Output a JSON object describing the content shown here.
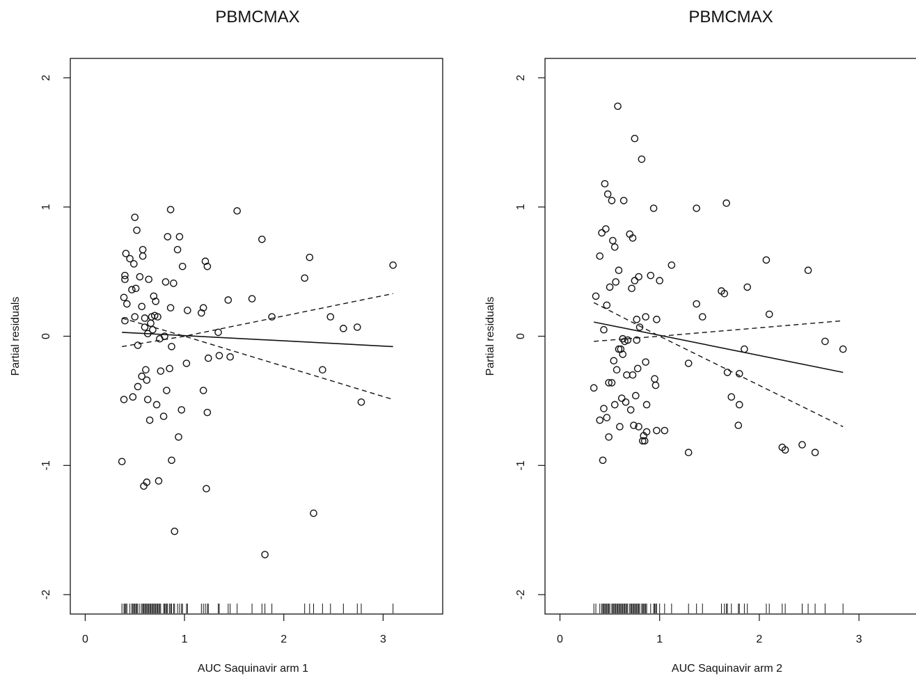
{
  "chart_data": [
    {
      "type": "scatter",
      "title": "PBMCMAX",
      "xlabel": "AUC Saquinavir arm 1",
      "ylabel": "Partial residuals",
      "xlim": [
        -0.15,
        3.6
      ],
      "ylim": [
        -2.15,
        2.15
      ],
      "x_ticks": [
        "0",
        "1",
        "2",
        "3"
      ],
      "y_ticks": [
        "-2",
        "-1",
        "0",
        "1",
        "2"
      ],
      "grid": false,
      "legend": "none",
      "points": [
        [
          0.37,
          -0.97
        ],
        [
          0.39,
          -0.49
        ],
        [
          0.4,
          0.47
        ],
        [
          0.4,
          0.44
        ],
        [
          0.39,
          0.3
        ],
        [
          0.4,
          0.12
        ],
        [
          0.41,
          0.64
        ],
        [
          0.42,
          0.25
        ],
        [
          0.45,
          0.6
        ],
        [
          0.47,
          0.36
        ],
        [
          0.48,
          -0.47
        ],
        [
          0.49,
          0.56
        ],
        [
          0.5,
          0.92
        ],
        [
          0.5,
          0.15
        ],
        [
          0.51,
          0.37
        ],
        [
          0.52,
          0.82
        ],
        [
          0.53,
          -0.07
        ],
        [
          0.53,
          -0.39
        ],
        [
          0.55,
          0.46
        ],
        [
          0.57,
          0.23
        ],
        [
          0.57,
          -0.31
        ],
        [
          0.58,
          0.67
        ],
        [
          0.58,
          0.62
        ],
        [
          0.59,
          -1.16
        ],
        [
          0.6,
          0.14
        ],
        [
          0.6,
          0.07
        ],
        [
          0.61,
          -0.26
        ],
        [
          0.62,
          -1.13
        ],
        [
          0.62,
          -0.34
        ],
        [
          0.63,
          0.02
        ],
        [
          0.63,
          -0.49
        ],
        [
          0.64,
          0.44
        ],
        [
          0.65,
          -0.65
        ],
        [
          0.66,
          0.1
        ],
        [
          0.67,
          0.15
        ],
        [
          0.68,
          0.05
        ],
        [
          0.69,
          0.31
        ],
        [
          0.7,
          0.16
        ],
        [
          0.71,
          0.27
        ],
        [
          0.72,
          -0.53
        ],
        [
          0.73,
          0.15
        ],
        [
          0.74,
          -1.12
        ],
        [
          0.75,
          -0.02
        ],
        [
          0.76,
          -0.27
        ],
        [
          0.79,
          -0.62
        ],
        [
          0.8,
          0.0
        ],
        [
          0.81,
          0.42
        ],
        [
          0.82,
          -0.42
        ],
        [
          0.83,
          0.77
        ],
        [
          0.85,
          -0.25
        ],
        [
          0.86,
          0.98
        ],
        [
          0.86,
          0.22
        ],
        [
          0.87,
          -0.96
        ],
        [
          0.87,
          -0.08
        ],
        [
          0.89,
          0.41
        ],
        [
          0.9,
          -1.51
        ],
        [
          0.93,
          0.67
        ],
        [
          0.94,
          -0.78
        ],
        [
          0.95,
          0.77
        ],
        [
          0.97,
          -0.57
        ],
        [
          0.98,
          0.54
        ],
        [
          1.02,
          -0.21
        ],
        [
          1.03,
          0.2
        ],
        [
          1.17,
          0.18
        ],
        [
          1.19,
          0.22
        ],
        [
          1.19,
          -0.42
        ],
        [
          1.21,
          0.58
        ],
        [
          1.22,
          -1.18
        ],
        [
          1.23,
          0.54
        ],
        [
          1.23,
          -0.59
        ],
        [
          1.24,
          -0.17
        ],
        [
          1.34,
          0.03
        ],
        [
          1.35,
          -0.15
        ],
        [
          1.44,
          0.28
        ],
        [
          1.46,
          -0.16
        ],
        [
          1.53,
          0.97
        ],
        [
          1.68,
          0.29
        ],
        [
          1.78,
          0.75
        ],
        [
          1.81,
          -1.69
        ],
        [
          1.88,
          0.15
        ],
        [
          2.21,
          0.45
        ],
        [
          2.26,
          0.61
        ],
        [
          2.3,
          -1.37
        ],
        [
          2.39,
          -0.26
        ],
        [
          2.47,
          0.15
        ],
        [
          2.6,
          0.06
        ],
        [
          2.74,
          0.07
        ],
        [
          2.78,
          -0.51
        ],
        [
          3.1,
          0.55
        ]
      ],
      "fit_line": [
        [
          0.37,
          0.03
        ],
        [
          3.1,
          -0.08
        ]
      ],
      "band_upper": [
        [
          0.37,
          -0.08
        ],
        [
          1.0,
          0.0
        ],
        [
          3.1,
          0.33
        ]
      ],
      "band_lower": [
        [
          0.37,
          0.14
        ],
        [
          1.0,
          0.0
        ],
        [
          3.1,
          -0.49
        ]
      ],
      "rug": [
        0.37,
        0.39,
        0.4,
        0.41,
        0.42,
        0.45,
        0.47,
        0.48,
        0.49,
        0.5,
        0.51,
        0.52,
        0.53,
        0.55,
        0.57,
        0.58,
        0.59,
        0.6,
        0.61,
        0.62,
        0.63,
        0.64,
        0.65,
        0.66,
        0.67,
        0.68,
        0.69,
        0.7,
        0.71,
        0.72,
        0.73,
        0.74,
        0.75,
        0.76,
        0.79,
        0.8,
        0.81,
        0.82,
        0.83,
        0.85,
        0.86,
        0.87,
        0.89,
        0.9,
        0.93,
        0.95,
        0.97,
        0.98,
        1.02,
        1.03,
        1.17,
        1.19,
        1.21,
        1.23,
        1.24,
        1.34,
        1.35,
        1.44,
        1.46,
        1.53,
        1.68,
        1.78,
        1.81,
        1.88,
        2.21,
        2.26,
        2.3,
        2.39,
        2.47,
        2.6,
        2.74,
        2.78,
        3.1
      ]
    },
    {
      "type": "scatter",
      "title": "PBMCMAX",
      "xlabel": "AUC Saquinavir arm 2",
      "ylabel": "Partial residuals",
      "xlim": [
        -0.15,
        3.6
      ],
      "ylim": [
        -2.15,
        2.15
      ],
      "x_ticks": [
        "0",
        "1",
        "2",
        "3"
      ],
      "y_ticks": [
        "-2",
        "-1",
        "0",
        "1",
        "2"
      ],
      "grid": false,
      "legend": "none",
      "points": [
        [
          0.34,
          -0.4
        ],
        [
          0.36,
          0.31
        ],
        [
          0.4,
          -0.65
        ],
        [
          0.4,
          0.62
        ],
        [
          0.42,
          0.8
        ],
        [
          0.43,
          -0.96
        ],
        [
          0.44,
          -0.56
        ],
        [
          0.44,
          0.05
        ],
        [
          0.45,
          1.18
        ],
        [
          0.46,
          0.83
        ],
        [
          0.47,
          0.24
        ],
        [
          0.47,
          -0.63
        ],
        [
          0.48,
          1.1
        ],
        [
          0.49,
          -0.78
        ],
        [
          0.49,
          -0.36
        ],
        [
          0.5,
          0.38
        ],
        [
          0.52,
          1.05
        ],
        [
          0.52,
          -0.36
        ],
        [
          0.53,
          0.74
        ],
        [
          0.54,
          -0.19
        ],
        [
          0.55,
          0.69
        ],
        [
          0.55,
          -0.53
        ],
        [
          0.56,
          0.42
        ],
        [
          0.57,
          -0.26
        ],
        [
          0.58,
          1.78
        ],
        [
          0.59,
          0.51
        ],
        [
          0.59,
          -0.1
        ],
        [
          0.6,
          -0.7
        ],
        [
          0.61,
          -0.1
        ],
        [
          0.62,
          -0.48
        ],
        [
          0.63,
          -0.02
        ],
        [
          0.63,
          -0.14
        ],
        [
          0.64,
          1.05
        ],
        [
          0.65,
          -0.04
        ],
        [
          0.66,
          -0.51
        ],
        [
          0.67,
          -0.3
        ],
        [
          0.68,
          -0.03
        ],
        [
          0.7,
          0.79
        ],
        [
          0.71,
          -0.57
        ],
        [
          0.72,
          0.37
        ],
        [
          0.73,
          0.76
        ],
        [
          0.73,
          -0.3
        ],
        [
          0.74,
          -0.69
        ],
        [
          0.75,
          0.43
        ],
        [
          0.75,
          1.53
        ],
        [
          0.76,
          -0.46
        ],
        [
          0.77,
          0.13
        ],
        [
          0.77,
          -0.03
        ],
        [
          0.78,
          -0.25
        ],
        [
          0.79,
          0.46
        ],
        [
          0.79,
          -0.7
        ],
        [
          0.8,
          0.07
        ],
        [
          0.82,
          1.37
        ],
        [
          0.83,
          -0.81
        ],
        [
          0.84,
          -0.77
        ],
        [
          0.85,
          -0.81
        ],
        [
          0.86,
          0.15
        ],
        [
          0.86,
          -0.2
        ],
        [
          0.87,
          -0.53
        ],
        [
          0.87,
          -0.74
        ],
        [
          0.91,
          0.47
        ],
        [
          0.94,
          0.99
        ],
        [
          0.95,
          -0.33
        ],
        [
          0.96,
          -0.38
        ],
        [
          0.97,
          0.13
        ],
        [
          0.97,
          -0.73
        ],
        [
          1.0,
          0.43
        ],
        [
          1.05,
          -0.73
        ],
        [
          1.12,
          0.55
        ],
        [
          1.29,
          -0.21
        ],
        [
          1.29,
          -0.9
        ],
        [
          1.37,
          0.99
        ],
        [
          1.37,
          0.25
        ],
        [
          1.43,
          0.15
        ],
        [
          1.62,
          0.35
        ],
        [
          1.65,
          0.33
        ],
        [
          1.67,
          1.03
        ],
        [
          1.68,
          -0.28
        ],
        [
          1.72,
          -0.47
        ],
        [
          1.79,
          -0.69
        ],
        [
          1.8,
          -0.29
        ],
        [
          1.8,
          -0.53
        ],
        [
          1.85,
          -0.1
        ],
        [
          1.88,
          0.38
        ],
        [
          2.07,
          0.59
        ],
        [
          2.1,
          0.17
        ],
        [
          2.23,
          -0.86
        ],
        [
          2.26,
          -0.88
        ],
        [
          2.43,
          -0.84
        ],
        [
          2.49,
          0.51
        ],
        [
          2.56,
          -0.9
        ],
        [
          2.66,
          -0.04
        ],
        [
          2.84,
          -0.1
        ]
      ],
      "fit_line": [
        [
          0.34,
          0.11
        ],
        [
          2.84,
          -0.28
        ]
      ],
      "band_upper": [
        [
          0.34,
          -0.04
        ],
        [
          1.0,
          0.0
        ],
        [
          2.84,
          0.12
        ]
      ],
      "band_lower": [
        [
          0.34,
          0.26
        ],
        [
          1.0,
          0.0
        ],
        [
          2.84,
          -0.7
        ]
      ],
      "rug": [
        0.34,
        0.36,
        0.4,
        0.42,
        0.43,
        0.44,
        0.45,
        0.46,
        0.47,
        0.48,
        0.49,
        0.5,
        0.52,
        0.53,
        0.54,
        0.55,
        0.56,
        0.57,
        0.58,
        0.59,
        0.6,
        0.61,
        0.62,
        0.63,
        0.64,
        0.65,
        0.66,
        0.67,
        0.68,
        0.7,
        0.71,
        0.72,
        0.73,
        0.74,
        0.75,
        0.76,
        0.77,
        0.78,
        0.79,
        0.8,
        0.82,
        0.83,
        0.84,
        0.85,
        0.86,
        0.87,
        0.91,
        0.94,
        0.95,
        0.96,
        0.97,
        1.0,
        1.05,
        1.12,
        1.29,
        1.37,
        1.43,
        1.62,
        1.65,
        1.67,
        1.68,
        1.72,
        1.79,
        1.8,
        1.85,
        1.88,
        2.07,
        2.1,
        2.23,
        2.26,
        2.43,
        2.49,
        2.56,
        2.66,
        2.84
      ]
    }
  ]
}
